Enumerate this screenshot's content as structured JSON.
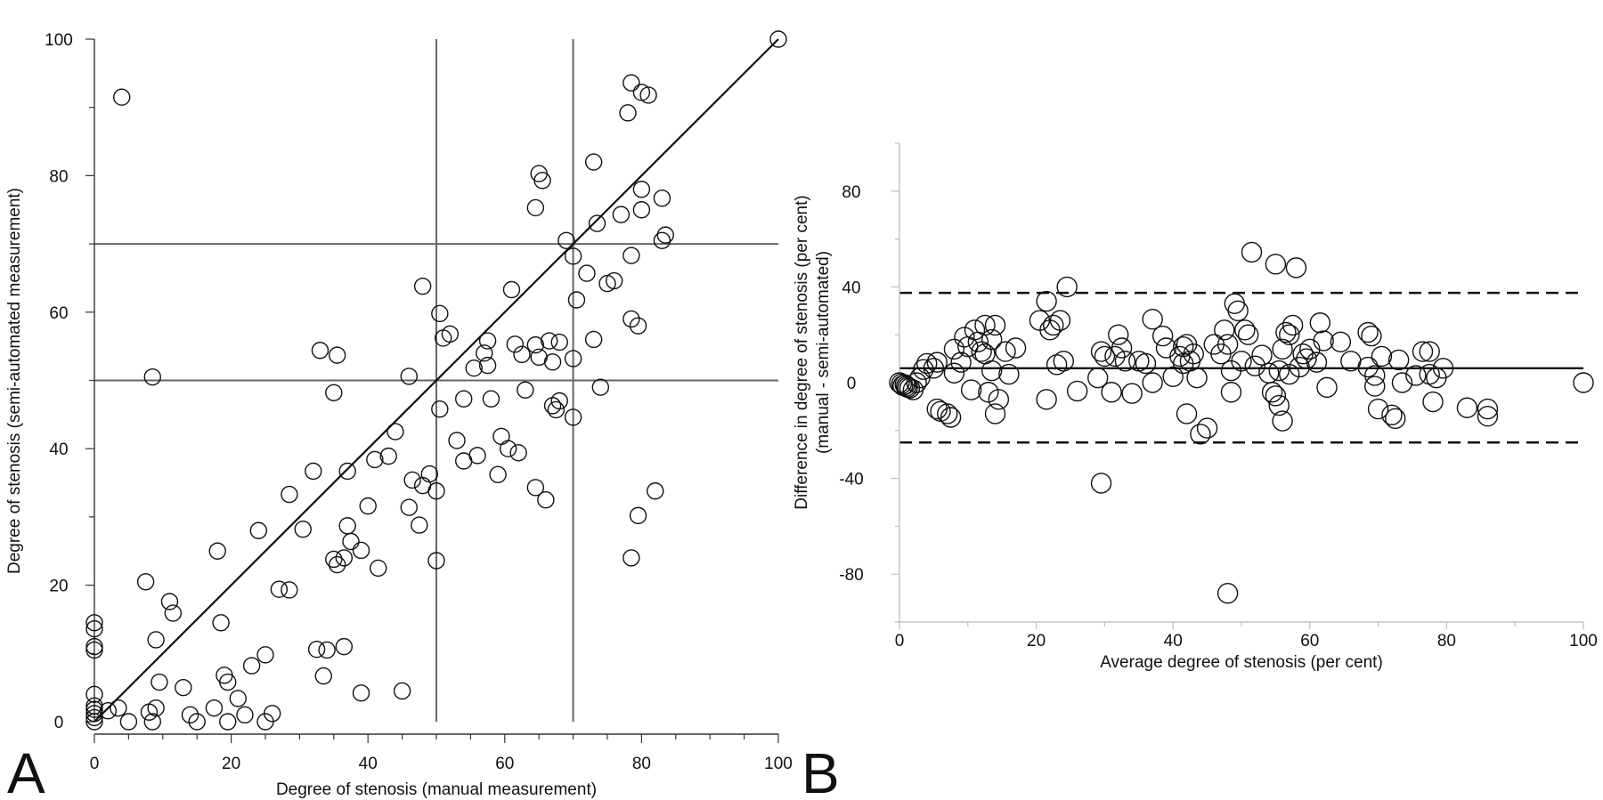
{
  "chart_data": [
    {
      "panel": "A",
      "type": "scatter",
      "title": "",
      "xlabel": "Degree of stenosis (manual measurement)",
      "ylabel": "Degree of stenosis (semi-automated measurement)",
      "xlim": [
        0,
        100
      ],
      "ylim": [
        0,
        100
      ],
      "xticks": [
        0,
        20,
        40,
        60,
        80,
        100
      ],
      "yticks": [
        0,
        20,
        40,
        60,
        80,
        100
      ],
      "reference_lines": {
        "identity": [
          [
            0,
            0
          ],
          [
            100,
            100
          ]
        ],
        "vertical": [
          50,
          70
        ],
        "horizontal": [
          50,
          70
        ]
      },
      "points": [
        [
          0,
          14.5
        ],
        [
          0,
          13.6
        ],
        [
          0,
          11
        ],
        [
          0,
          10.5
        ],
        [
          0,
          4
        ],
        [
          0,
          2.3
        ],
        [
          0,
          1.8
        ],
        [
          0,
          1.2
        ],
        [
          0,
          0.6
        ],
        [
          0,
          0
        ],
        [
          2,
          1.6
        ],
        [
          3.5,
          2
        ],
        [
          4,
          91.5
        ],
        [
          5,
          0
        ],
        [
          7.5,
          20.5
        ],
        [
          8,
          1.4
        ],
        [
          8.5,
          0
        ],
        [
          8.5,
          50.5
        ],
        [
          9,
          12
        ],
        [
          9,
          2
        ],
        [
          9.5,
          5.8
        ],
        [
          11,
          17.6
        ],
        [
          11.5,
          15.9
        ],
        [
          13,
          5
        ],
        [
          14,
          1
        ],
        [
          15,
          0
        ],
        [
          17.5,
          2
        ],
        [
          18,
          25
        ],
        [
          18.5,
          14.5
        ],
        [
          19,
          6.8
        ],
        [
          19.5,
          5.8
        ],
        [
          19.5,
          0
        ],
        [
          21,
          3.4
        ],
        [
          22,
          1
        ],
        [
          23,
          8.2
        ],
        [
          24,
          28
        ],
        [
          25,
          9.8
        ],
        [
          25,
          0
        ],
        [
          26,
          1.2
        ],
        [
          27,
          19.4
        ],
        [
          28.5,
          33.3
        ],
        [
          28.5,
          19.3
        ],
        [
          30.5,
          28.2
        ],
        [
          32,
          36.7
        ],
        [
          32.5,
          10.6
        ],
        [
          33,
          54.4
        ],
        [
          33.5,
          6.7
        ],
        [
          34,
          10.5
        ],
        [
          35,
          23.8
        ],
        [
          35,
          48.2
        ],
        [
          35.5,
          53.7
        ],
        [
          35.5,
          23
        ],
        [
          36.5,
          24
        ],
        [
          36.5,
          11
        ],
        [
          37,
          28.7
        ],
        [
          37,
          36.7
        ],
        [
          37.5,
          26.4
        ],
        [
          39,
          25.1
        ],
        [
          39,
          4.2
        ],
        [
          40,
          31.6
        ],
        [
          41,
          38.4
        ],
        [
          41.5,
          22.5
        ],
        [
          43,
          38.9
        ],
        [
          44,
          42.5
        ],
        [
          45,
          4.5
        ],
        [
          46,
          50.6
        ],
        [
          46,
          31.4
        ],
        [
          46.5,
          35.4
        ],
        [
          47.5,
          28.8
        ],
        [
          48,
          63.8
        ],
        [
          48,
          34.6
        ],
        [
          49,
          36.3
        ],
        [
          50,
          23.6
        ],
        [
          50,
          33.8
        ],
        [
          50.5,
          59.8
        ],
        [
          50.5,
          45.8
        ],
        [
          51,
          56.2
        ],
        [
          52,
          56.8
        ],
        [
          53,
          41.2
        ],
        [
          54,
          38.2
        ],
        [
          54,
          47.3
        ],
        [
          55.5,
          51.8
        ],
        [
          56,
          39
        ],
        [
          57,
          54
        ],
        [
          57.5,
          55.8
        ],
        [
          57.5,
          52.2
        ],
        [
          58,
          47.3
        ],
        [
          59,
          36.2
        ],
        [
          59.5,
          41.8
        ],
        [
          60.5,
          40
        ],
        [
          61,
          63.3
        ],
        [
          61.5,
          55.3
        ],
        [
          62,
          39.4
        ],
        [
          62.5,
          53.8
        ],
        [
          63,
          48.6
        ],
        [
          64.5,
          75.3
        ],
        [
          64.5,
          55.2
        ],
        [
          64.5,
          34.3
        ],
        [
          65,
          80.3
        ],
        [
          65,
          53.4
        ],
        [
          65.5,
          79.3
        ],
        [
          66,
          32.5
        ],
        [
          66.5,
          55.8
        ],
        [
          67,
          46.3
        ],
        [
          67,
          52.7
        ],
        [
          67.5,
          45.7
        ],
        [
          68,
          55.6
        ],
        [
          68,
          47
        ],
        [
          69,
          70.5
        ],
        [
          70,
          68.2
        ],
        [
          70,
          53.2
        ],
        [
          70,
          44.6
        ],
        [
          70.5,
          61.8
        ],
        [
          72,
          65.7
        ],
        [
          73,
          82
        ],
        [
          73,
          56
        ],
        [
          73.5,
          73
        ],
        [
          74,
          49
        ],
        [
          75,
          64.2
        ],
        [
          76,
          64.6
        ],
        [
          77,
          74.3
        ],
        [
          78,
          89.2
        ],
        [
          78.5,
          93.6
        ],
        [
          78.5,
          68.3
        ],
        [
          78.5,
          59
        ],
        [
          78.5,
          24
        ],
        [
          79.5,
          58
        ],
        [
          79.5,
          30.2
        ],
        [
          80,
          75
        ],
        [
          80,
          78
        ],
        [
          80,
          92.2
        ],
        [
          81,
          91.8
        ],
        [
          82,
          33.8
        ],
        [
          83,
          76.7
        ],
        [
          83,
          70.5
        ],
        [
          83.5,
          71.3
        ],
        [
          100,
          100
        ]
      ]
    },
    {
      "panel": "B",
      "type": "scatter",
      "title": "",
      "xlabel": "Average degree of stenosis (per cent)",
      "ylabel": "Difference in degree of stenosis (per cent)",
      "ylabel2": "(manual - semi-automated)",
      "xlim": [
        0,
        100
      ],
      "ylim": [
        -100,
        100
      ],
      "xticks": [
        0,
        20,
        40,
        60,
        80,
        100
      ],
      "yticks": [
        80,
        40,
        0,
        -40,
        -80
      ],
      "reference_lines": {
        "mean_difference": 6,
        "upper_limit_of_agreement": 37.5,
        "lower_limit_of_agreement": -25
      },
      "points": [
        [
          0,
          0
        ],
        [
          0.3,
          -0.5
        ],
        [
          0.5,
          -1.2
        ],
        [
          0.8,
          -0.8
        ],
        [
          1,
          -1.5
        ],
        [
          1.2,
          -2
        ],
        [
          1.5,
          -2.3
        ],
        [
          2,
          -3
        ],
        [
          2.5,
          0
        ],
        [
          3,
          2
        ],
        [
          3.5,
          5.5
        ],
        [
          4,
          8
        ],
        [
          5,
          6
        ],
        [
          5.5,
          8.5
        ],
        [
          5.5,
          -11
        ],
        [
          6,
          -12
        ],
        [
          7,
          -13
        ],
        [
          7.5,
          -14.5
        ],
        [
          8,
          14
        ],
        [
          8,
          4
        ],
        [
          9,
          8.5
        ],
        [
          9.5,
          19
        ],
        [
          10,
          15
        ],
        [
          10.5,
          -3
        ],
        [
          11,
          22
        ],
        [
          11.5,
          17
        ],
        [
          12,
          13
        ],
        [
          12.5,
          24
        ],
        [
          12.5,
          12
        ],
        [
          13,
          -4
        ],
        [
          13.5,
          18
        ],
        [
          13.5,
          5
        ],
        [
          14,
          24
        ],
        [
          14,
          -13
        ],
        [
          14.5,
          -7
        ],
        [
          15.5,
          13
        ],
        [
          16,
          3.5
        ],
        [
          17,
          14.5
        ],
        [
          20.5,
          26
        ],
        [
          21.5,
          -7
        ],
        [
          21.5,
          34
        ],
        [
          22,
          22
        ],
        [
          22.5,
          24
        ],
        [
          23,
          7.5
        ],
        [
          23.5,
          26
        ],
        [
          24,
          9
        ],
        [
          24.5,
          40
        ],
        [
          26,
          -3.5
        ],
        [
          29,
          2
        ],
        [
          29.5,
          -42
        ],
        [
          29.5,
          13
        ],
        [
          30,
          11
        ],
        [
          31,
          -4
        ],
        [
          31.5,
          11
        ],
        [
          32,
          20
        ],
        [
          32.5,
          14.5
        ],
        [
          33,
          9
        ],
        [
          34,
          -4.5
        ],
        [
          35,
          9
        ],
        [
          36,
          8
        ],
        [
          37,
          26.5
        ],
        [
          37,
          0
        ],
        [
          38.5,
          19.5
        ],
        [
          39,
          14.5
        ],
        [
          40,
          2.5
        ],
        [
          41,
          11
        ],
        [
          41.5,
          8
        ],
        [
          41.5,
          15
        ],
        [
          42,
          16
        ],
        [
          42,
          -13
        ],
        [
          42.5,
          9
        ],
        [
          43,
          12
        ],
        [
          43.5,
          2
        ],
        [
          44,
          -21.5
        ],
        [
          45,
          -19
        ],
        [
          46,
          16
        ],
        [
          47,
          12
        ],
        [
          47.5,
          22
        ],
        [
          48,
          -88
        ],
        [
          48,
          16
        ],
        [
          48.5,
          -4
        ],
        [
          48.5,
          5
        ],
        [
          49,
          33
        ],
        [
          49.5,
          30
        ],
        [
          50,
          9
        ],
        [
          50.5,
          22
        ],
        [
          51,
          20
        ],
        [
          51.5,
          54.5
        ],
        [
          52,
          7
        ],
        [
          53,
          11.5
        ],
        [
          54,
          4
        ],
        [
          54.5,
          -4
        ],
        [
          55,
          -5.5
        ],
        [
          55,
          49.5
        ],
        [
          55.5,
          5
        ],
        [
          55.5,
          -9.5
        ],
        [
          56,
          14
        ],
        [
          56,
          -16
        ],
        [
          56.5,
          21
        ],
        [
          57,
          3.5
        ],
        [
          57,
          20
        ],
        [
          57.5,
          24
        ],
        [
          58,
          48
        ],
        [
          58.5,
          6.5
        ],
        [
          59,
          12
        ],
        [
          59.5,
          10
        ],
        [
          60,
          14
        ],
        [
          61,
          8.5
        ],
        [
          61.5,
          25
        ],
        [
          62,
          17.5
        ],
        [
          62.5,
          -2
        ],
        [
          64.5,
          17
        ],
        [
          66,
          9
        ],
        [
          68.5,
          6.5
        ],
        [
          68.5,
          21
        ],
        [
          69,
          19.5
        ],
        [
          69.5,
          3
        ],
        [
          69.5,
          -1.5
        ],
        [
          70,
          -11
        ],
        [
          70.5,
          11
        ],
        [
          72,
          -13.5
        ],
        [
          72.5,
          -15
        ],
        [
          73,
          9.5
        ],
        [
          73.5,
          0
        ],
        [
          75.5,
          3
        ],
        [
          76.5,
          13
        ],
        [
          77.5,
          3.5
        ],
        [
          77.5,
          13
        ],
        [
          78,
          -8
        ],
        [
          78.5,
          2
        ],
        [
          79.5,
          6
        ],
        [
          83,
          -10.5
        ],
        [
          86,
          -11
        ],
        [
          86,
          -14
        ],
        [
          100,
          0
        ]
      ]
    }
  ],
  "panel_labels": {
    "a": "A",
    "b": "B"
  }
}
